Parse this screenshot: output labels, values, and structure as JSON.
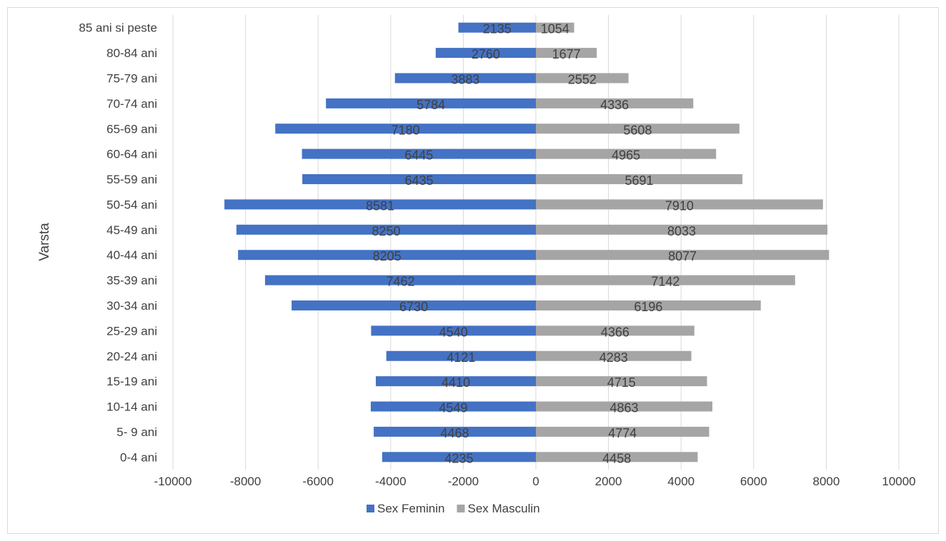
{
  "chart_data": {
    "type": "bar",
    "orientation": "horizontal",
    "title": "",
    "xlabel": "",
    "ylabel": "Varsta",
    "xlim": [
      -10000,
      10000
    ],
    "xticks": [
      -10000,
      -8000,
      -6000,
      -4000,
      -2000,
      0,
      2000,
      4000,
      6000,
      8000,
      10000
    ],
    "grid": true,
    "legend_position": "bottom",
    "categories": [
      "0-4 ani",
      "5- 9 ani",
      "10-14 ani",
      "15-19 ani",
      "20-24 ani",
      "25-29 ani",
      "30-34 ani",
      "35-39 ani",
      "40-44 ani",
      "45-49 ani",
      "50-54 ani",
      "55-59 ani",
      "60-64 ani",
      "65-69 ani",
      "70-74 ani",
      "75-79 ani",
      "80-84 ani",
      "85 ani si peste"
    ],
    "series": [
      {
        "name": "Sex Feminin",
        "color": "#4472c4",
        "values": [
          -4235,
          -4468,
          -4549,
          -4410,
          -4121,
          -4540,
          -6730,
          -7462,
          -8205,
          -8250,
          -8581,
          -6435,
          -6445,
          -7180,
          -5784,
          -3883,
          -2760,
          -2135
        ],
        "labels": [
          "4235",
          "4468",
          "4549",
          "4410",
          "4121",
          "4540",
          "6730",
          "7462",
          "8205",
          "8250",
          "8581",
          "6435",
          "6445",
          "7180",
          "5784",
          "3883",
          "2760",
          "2135"
        ]
      },
      {
        "name": "Sex Masculin",
        "color": "#a5a5a5",
        "values": [
          4458,
          4774,
          4863,
          4715,
          4283,
          4366,
          6196,
          7142,
          8077,
          8033,
          7910,
          5691,
          4965,
          5608,
          4336,
          2552,
          1677,
          1054
        ],
        "labels": [
          "4458",
          "4774",
          "4863",
          "4715",
          "4283",
          "4366",
          "6196",
          "7142",
          "8077",
          "8033",
          "7910",
          "5691",
          "4965",
          "5608",
          "4336",
          "2552",
          "1677",
          "1054"
        ]
      }
    ]
  }
}
